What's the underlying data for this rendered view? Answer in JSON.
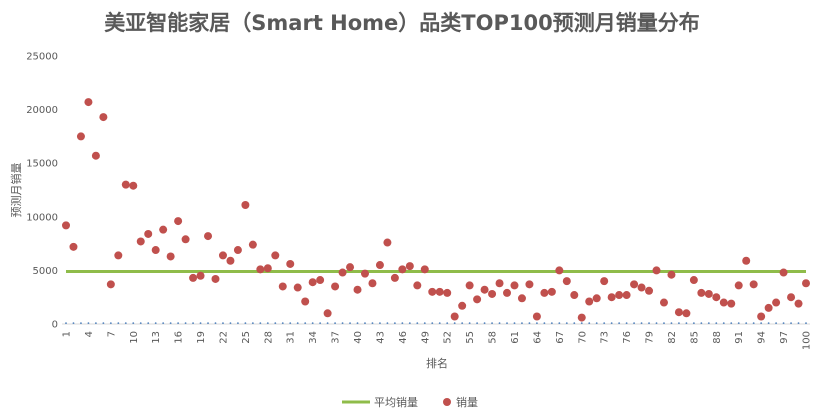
{
  "chart_data": {
    "type": "scatter",
    "title": "美亚智能家居（Smart Home）品类TOP100预测月销量分布",
    "xlabel": "排名",
    "ylabel": "预测月销量",
    "ylim": [
      0,
      25000
    ],
    "yticks": [
      0,
      5000,
      10000,
      15000,
      20000,
      25000
    ],
    "xticks": [
      1,
      4,
      7,
      10,
      13,
      16,
      19,
      22,
      25,
      28,
      31,
      34,
      37,
      40,
      43,
      46,
      49,
      52,
      55,
      58,
      61,
      64,
      67,
      70,
      73,
      76,
      79,
      82,
      85,
      88,
      91,
      94,
      97,
      100
    ],
    "grid": false,
    "legend_position": "bottom",
    "series": [
      {
        "name": "平均销量",
        "kind": "line",
        "color": "#8fbc4a",
        "value": 4900
      },
      {
        "name": "销量",
        "kind": "scatter",
        "color": "#c0504d",
        "x": [
          1,
          2,
          3,
          4,
          5,
          6,
          7,
          8,
          9,
          10,
          11,
          12,
          13,
          14,
          15,
          16,
          17,
          18,
          19,
          20,
          21,
          22,
          23,
          24,
          25,
          26,
          27,
          28,
          29,
          30,
          31,
          32,
          33,
          34,
          35,
          36,
          37,
          38,
          39,
          40,
          41,
          42,
          43,
          44,
          45,
          46,
          47,
          48,
          49,
          50,
          51,
          52,
          53,
          54,
          55,
          56,
          57,
          58,
          59,
          60,
          61,
          62,
          63,
          64,
          65,
          66,
          67,
          68,
          69,
          70,
          71,
          72,
          73,
          74,
          75,
          76,
          77,
          78,
          79,
          80,
          81,
          82,
          83,
          84,
          85,
          86,
          87,
          88,
          89,
          90,
          91,
          92,
          93,
          94,
          95,
          96,
          97,
          98,
          99,
          100
        ],
        "values": [
          9200,
          7200,
          17500,
          20700,
          15700,
          19300,
          3700,
          6400,
          13000,
          12900,
          7700,
          8400,
          6900,
          8800,
          6300,
          9600,
          7900,
          4300,
          4500,
          8200,
          4200,
          6400,
          5900,
          6900,
          11100,
          7400,
          5100,
          5200,
          6400,
          3500,
          5600,
          3400,
          2100,
          3900,
          4100,
          1000,
          3500,
          4800,
          5300,
          3200,
          4700,
          3800,
          5500,
          7600,
          4300,
          5100,
          5400,
          3600,
          5100,
          3000,
          3000,
          2900,
          700,
          1700,
          3600,
          2300,
          3200,
          2800,
          3800,
          2900,
          3600,
          2400,
          3700,
          700,
          2900,
          3000,
          5000,
          4000,
          2700,
          600,
          2100,
          2400,
          4000,
          2500,
          2700,
          2700,
          3700,
          3400,
          3100,
          5000,
          2000,
          4600,
          1100,
          1000,
          4100,
          2900,
          2800,
          2500,
          2000,
          1900,
          3600,
          5900,
          3700,
          700,
          1500,
          2000,
          4800,
          2500,
          1900,
          3800
        ]
      },
      {
        "name": "",
        "kind": "dots",
        "color": "#4f81bd",
        "value": 80
      }
    ]
  }
}
